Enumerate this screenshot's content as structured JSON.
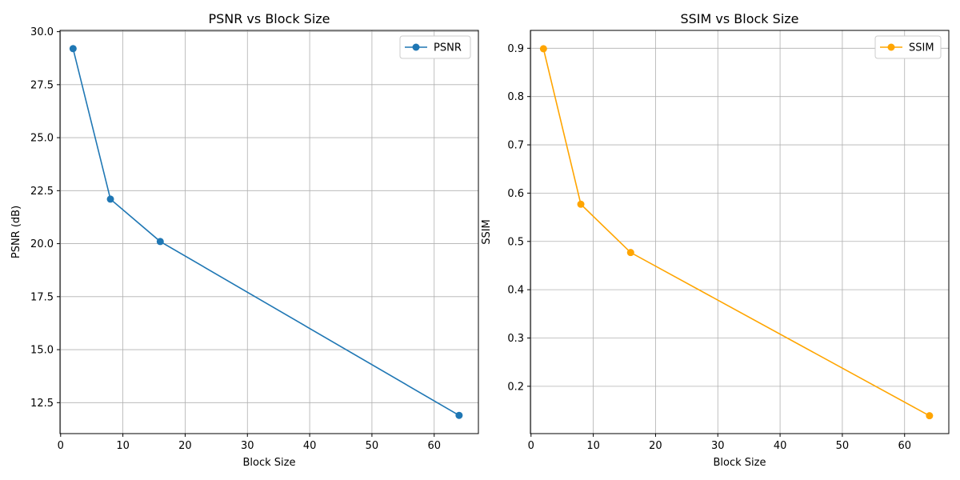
{
  "figure": {
    "background": "#ffffff"
  },
  "chart_data": [
    {
      "type": "line",
      "title": "PSNR vs Block Size",
      "xlabel": "Block Size",
      "ylabel": "PSNR (dB)",
      "xlim": [
        -0.1,
        67.1
      ],
      "ylim": [
        11.04,
        30.06
      ],
      "xticks": [
        0,
        10,
        20,
        30,
        40,
        50,
        60
      ],
      "xtick_labels": [
        "0",
        "10",
        "20",
        "30",
        "40",
        "50",
        "60"
      ],
      "yticks": [
        12.5,
        15.0,
        17.5,
        20.0,
        22.5,
        25.0,
        27.5,
        30.0
      ],
      "ytick_labels": [
        "12.5",
        "15.0",
        "17.5",
        "20.0",
        "22.5",
        "25.0",
        "27.5",
        "30.0"
      ],
      "grid": true,
      "legend_position": "top-right",
      "series": [
        {
          "name": "PSNR",
          "color": "#1f77b4",
          "marker": "circle",
          "x": [
            2,
            8,
            16,
            64
          ],
          "y": [
            29.2,
            22.1,
            20.1,
            11.9
          ]
        }
      ]
    },
    {
      "type": "line",
      "title": "SSIM vs Block Size",
      "xlabel": "Block Size",
      "ylabel": "SSIM",
      "xlim": [
        -0.1,
        67.1
      ],
      "ylim": [
        0.102,
        0.937
      ],
      "xticks": [
        0,
        10,
        20,
        30,
        40,
        50,
        60
      ],
      "xtick_labels": [
        "0",
        "10",
        "20",
        "30",
        "40",
        "50",
        "60"
      ],
      "yticks": [
        0.2,
        0.3,
        0.4,
        0.5,
        0.6,
        0.7,
        0.8,
        0.9
      ],
      "ytick_labels": [
        "0.2",
        "0.3",
        "0.4",
        "0.5",
        "0.6",
        "0.7",
        "0.8",
        "0.9"
      ],
      "grid": true,
      "legend_position": "top-right",
      "series": [
        {
          "name": "SSIM",
          "color": "#ffa500",
          "marker": "circle",
          "x": [
            2,
            8,
            16,
            64
          ],
          "y": [
            0.899,
            0.577,
            0.477,
            0.139
          ]
        }
      ]
    }
  ]
}
